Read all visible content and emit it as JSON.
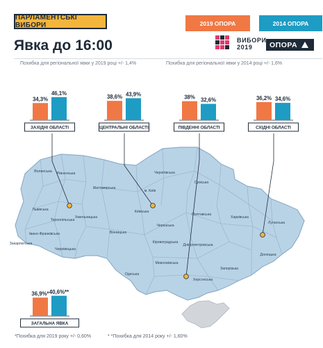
{
  "header": {
    "tag": "ПАРЛАМЕНТСЬКІ ВИБОРИ",
    "title_prefix": "Явка до",
    "title_time": "16:00"
  },
  "legend": {
    "label_2019": "2019 ОПОРА",
    "label_2014": "2014 ОПОРА"
  },
  "logos": {
    "vybory_line1": "ВИБОРИ",
    "vybory_line2": "2019",
    "opora": "ОПОРА"
  },
  "notes": {
    "error_2019": "Похибка для регіональної явки у 2019 році +/- 1,4%",
    "error_2014": "Похибка для регіональної явки у 2014 році +/- 1,6%",
    "footnote_2019": "*Похибка для 2019  року +/- 0,60%",
    "footnote_2014": "* *Похибка для 2014  року +/- 1,60%"
  },
  "colors": {
    "c2019": "#f07845",
    "c2014": "#1e9cc4",
    "map_fill": "#b9d3e6",
    "map_stroke": "#8eaec8",
    "marker": "#f4b53c",
    "dark": "#1e2a38"
  },
  "chart_data": {
    "type": "bar",
    "categories": [
      "ЗАХІДНІ ОБЛАСТІ",
      "ЦЕНТРАЛЬНІ ОБЛАСТІ",
      "ПІВДЕННІ ОБЛАСТІ",
      "СХІДНІ ОБЛАСТІ"
    ],
    "series": [
      {
        "name": "2019 ОПОРА",
        "values": [
          34.3,
          38.6,
          38.0,
          36.2
        ],
        "labels": [
          "34,3%",
          "38,6%",
          "38%",
          "36,2%"
        ]
      },
      {
        "name": "2014 ОПОРА",
        "values": [
          46.1,
          43.9,
          32.6,
          34.6
        ],
        "labels": [
          "46,1%",
          "43,9%",
          "32,6%",
          "34,6%"
        ]
      }
    ],
    "total": {
      "category": "ЗАГАЛЬНА ЯВКА",
      "values": [
        36.9,
        40.6
      ],
      "labels": [
        "36,9%*",
        "40,6%**"
      ]
    },
    "unit": "%"
  },
  "map": {
    "regions": [
      "Волинська",
      "Рівненська",
      "Житомирська",
      "Чернігівська",
      "Сумська",
      "Львівська",
      "Тернопільська",
      "Хмельницька",
      "м. Київ",
      "Київська",
      "Полтавська",
      "Харківська",
      "Луганська",
      "Закарпатська",
      "Івано-Франківська",
      "Чернівецька",
      "Вінницька",
      "Черкаська",
      "Кіровоградська",
      "Дніпропетровська",
      "Донецька",
      "Миколаївська",
      "Одеська",
      "Херсонська",
      "Запорізька"
    ]
  }
}
